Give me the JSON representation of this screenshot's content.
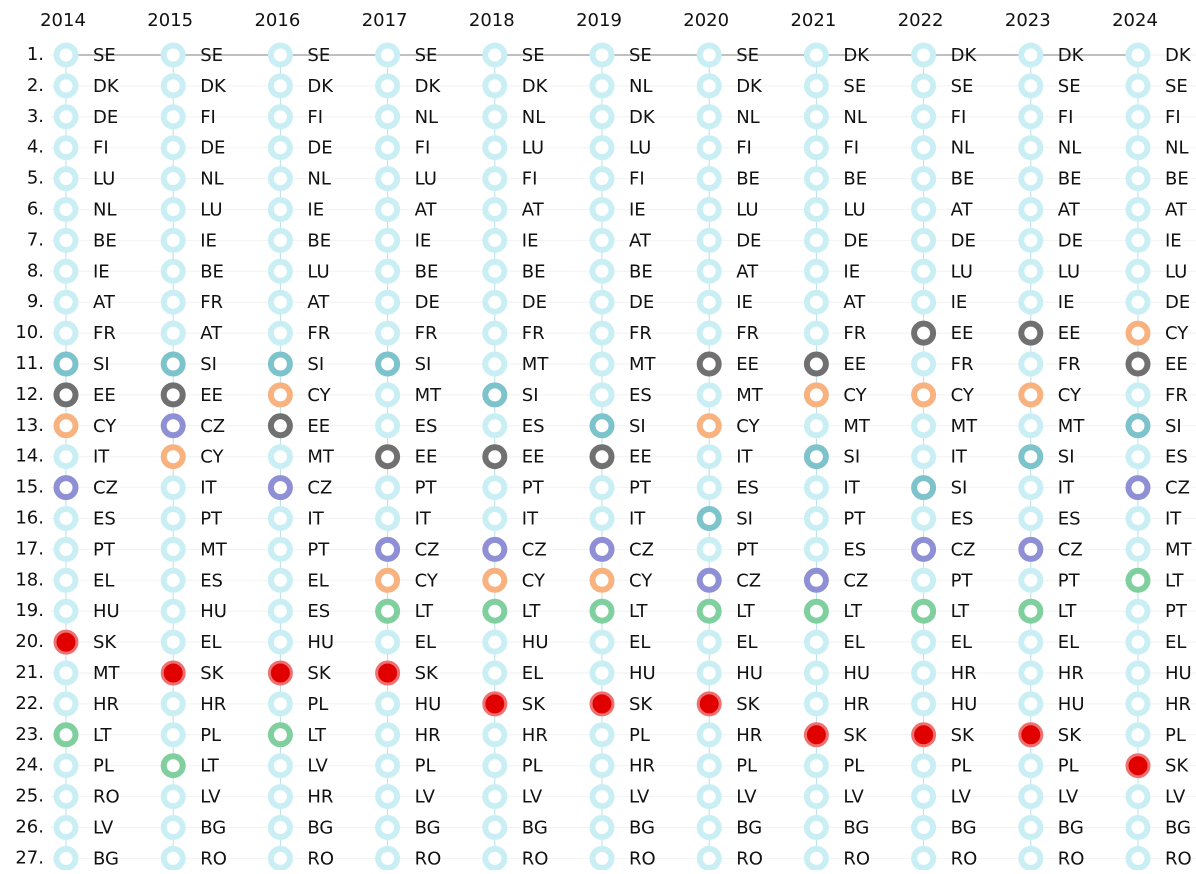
{
  "years": [
    "2014",
    "2015",
    "2016",
    "2017",
    "2018",
    "2019",
    "2020",
    "2021",
    "2022",
    "2023",
    "2024"
  ],
  "ranks": [
    "1.",
    "2.",
    "3.",
    "4.",
    "5.",
    "6.",
    "7.",
    "8.",
    "9.",
    "10.",
    "11.",
    "12.",
    "13.",
    "14.",
    "15.",
    "16.",
    "17.",
    "18.",
    "19.",
    "20.",
    "21.",
    "22.",
    "23.",
    "24.",
    "25.",
    "26.",
    "27."
  ],
  "columns": [
    [
      "SE",
      "DK",
      "DE",
      "FI",
      "LU",
      "NL",
      "BE",
      "IE",
      "AT",
      "FR",
      "SI",
      "EE",
      "CY",
      "IT",
      "CZ",
      "ES",
      "PT",
      "EL",
      "HU",
      "SK",
      "MT",
      "HR",
      "LT",
      "PL",
      "RO",
      "LV",
      "BG"
    ],
    [
      "SE",
      "DK",
      "FI",
      "DE",
      "NL",
      "LU",
      "IE",
      "BE",
      "FR",
      "AT",
      "SI",
      "EE",
      "CZ",
      "CY",
      "IT",
      "PT",
      "MT",
      "ES",
      "HU",
      "EL",
      "SK",
      "HR",
      "PL",
      "LT",
      "LV",
      "BG",
      "RO"
    ],
    [
      "SE",
      "DK",
      "FI",
      "DE",
      "NL",
      "IE",
      "BE",
      "LU",
      "AT",
      "FR",
      "SI",
      "CY",
      "EE",
      "MT",
      "CZ",
      "IT",
      "PT",
      "EL",
      "ES",
      "HU",
      "SK",
      "PL",
      "LT",
      "LV",
      "HR",
      "BG",
      "RO"
    ],
    [
      "SE",
      "DK",
      "NL",
      "FI",
      "LU",
      "AT",
      "IE",
      "BE",
      "DE",
      "FR",
      "SI",
      "MT",
      "ES",
      "EE",
      "PT",
      "IT",
      "CZ",
      "CY",
      "LT",
      "EL",
      "SK",
      "HU",
      "HR",
      "PL",
      "LV",
      "BG",
      "RO"
    ],
    [
      "SE",
      "DK",
      "NL",
      "LU",
      "FI",
      "AT",
      "IE",
      "BE",
      "DE",
      "FR",
      "MT",
      "SI",
      "ES",
      "EE",
      "PT",
      "IT",
      "CZ",
      "CY",
      "LT",
      "HU",
      "EL",
      "SK",
      "HR",
      "PL",
      "LV",
      "BG",
      "RO"
    ],
    [
      "SE",
      "NL",
      "DK",
      "LU",
      "FI",
      "IE",
      "AT",
      "BE",
      "DE",
      "FR",
      "MT",
      "ES",
      "SI",
      "EE",
      "PT",
      "IT",
      "CZ",
      "CY",
      "LT",
      "EL",
      "HU",
      "SK",
      "PL",
      "HR",
      "LV",
      "BG",
      "RO"
    ],
    [
      "SE",
      "DK",
      "NL",
      "FI",
      "BE",
      "LU",
      "DE",
      "AT",
      "IE",
      "FR",
      "EE",
      "MT",
      "CY",
      "IT",
      "ES",
      "SI",
      "PT",
      "CZ",
      "LT",
      "EL",
      "HU",
      "SK",
      "HR",
      "PL",
      "LV",
      "BG",
      "RO"
    ],
    [
      "DK",
      "SE",
      "NL",
      "FI",
      "BE",
      "LU",
      "DE",
      "IE",
      "AT",
      "FR",
      "EE",
      "CY",
      "MT",
      "SI",
      "IT",
      "PT",
      "ES",
      "CZ",
      "LT",
      "EL",
      "HU",
      "HR",
      "SK",
      "PL",
      "LV",
      "BG",
      "RO"
    ],
    [
      "DK",
      "SE",
      "FI",
      "NL",
      "BE",
      "AT",
      "DE",
      "LU",
      "IE",
      "EE",
      "FR",
      "CY",
      "MT",
      "IT",
      "SI",
      "ES",
      "CZ",
      "PT",
      "LT",
      "EL",
      "HR",
      "HU",
      "SK",
      "PL",
      "LV",
      "BG",
      "RO"
    ],
    [
      "DK",
      "SE",
      "FI",
      "NL",
      "BE",
      "AT",
      "DE",
      "LU",
      "IE",
      "EE",
      "FR",
      "CY",
      "MT",
      "SI",
      "IT",
      "ES",
      "CZ",
      "PT",
      "LT",
      "EL",
      "HR",
      "HU",
      "SK",
      "PL",
      "LV",
      "BG",
      "RO"
    ],
    [
      "DK",
      "SE",
      "FI",
      "NL",
      "BE",
      "AT",
      "IE",
      "LU",
      "DE",
      "CY",
      "EE",
      "FR",
      "SI",
      "ES",
      "CZ",
      "IT",
      "MT",
      "LT",
      "PT",
      "EL",
      "HU",
      "HR",
      "PL",
      "SK",
      "LV",
      "BG",
      "RO"
    ]
  ],
  "colors": {
    "default": "#c9eff5",
    "SI": "#7cc3cc",
    "EE": "#707070",
    "CY": "#f8b27f",
    "CZ": "#8f8fd6",
    "LT": "#7fcf9f",
    "SK": "#f07070"
  },
  "fills": {
    "SK": "#e00000"
  }
}
